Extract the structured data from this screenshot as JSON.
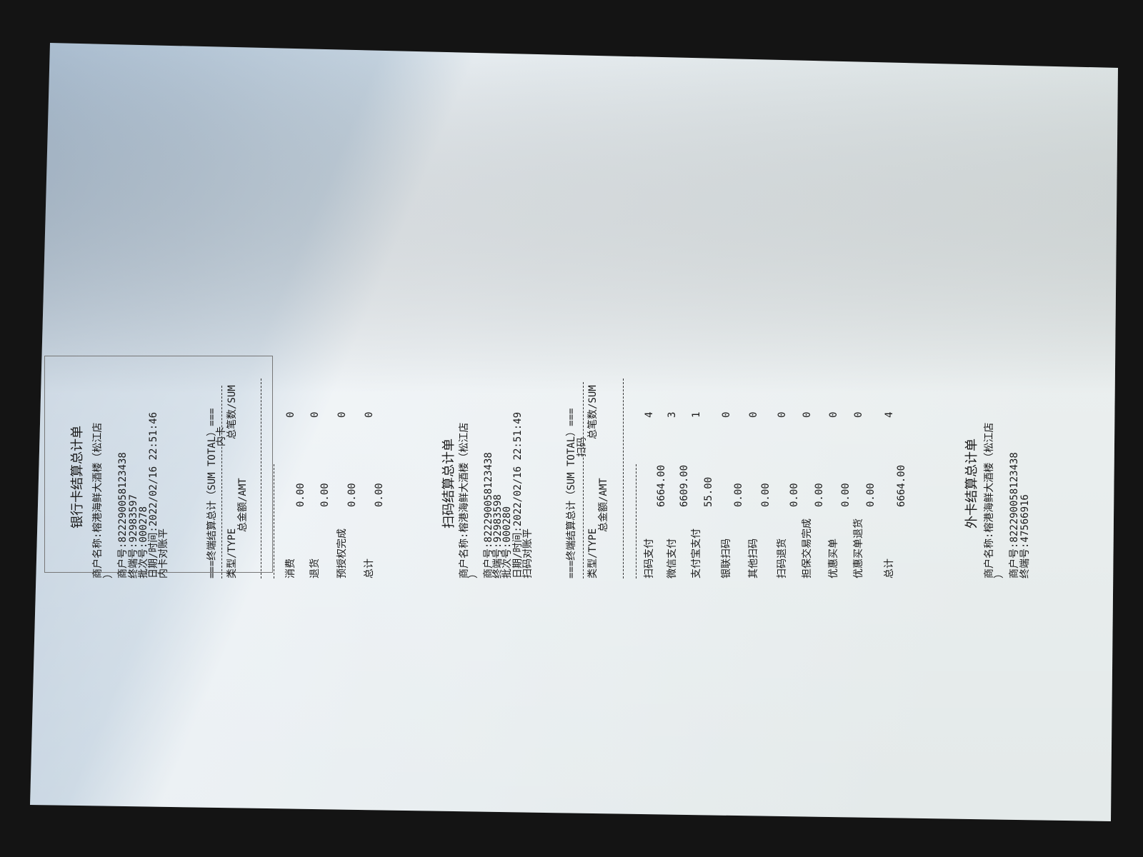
{
  "receipts": [
    {
      "title": "银行卡结算总计单",
      "merchant_name": "商户名称:榕港海鲜大酒楼（松江店",
      "merchant_name_cont": "）",
      "merchant_no": "商户号:822290058123438",
      "terminal_no": "终端号:92983597",
      "batch_no": "批次号:000278",
      "datetime": "日期/时间:2022/02/16 22:51:46",
      "status": "内卡对账平",
      "sum_header": "===终端结算总计（SUM TOTAL）===",
      "section": "内卡",
      "col_type": "类型/TYPE",
      "col_count": "总笔数/SUM",
      "col_amount": "总金额/AMT",
      "rows": [
        {
          "label": "消费",
          "count": "0",
          "amount": "0.00"
        },
        {
          "label": "退货",
          "count": "0",
          "amount": "0.00"
        },
        {
          "label": "预授权完成",
          "count": "0",
          "amount": "0.00"
        },
        {
          "label": "总计",
          "count": "0",
          "amount": "0.00"
        }
      ]
    },
    {
      "title": "扫码结算总计单",
      "merchant_name": "商户名称:榕港海鲜大酒楼（松江店",
      "merchant_name_cont": "）",
      "merchant_no": "商户号:822290058123438",
      "terminal_no": "终端号:92983598",
      "batch_no": "批次号:000280",
      "datetime": "日期/时间:2022/02/16 22:51:49",
      "status": "扫码对账平",
      "sum_header": "===终端结算总计（SUM TOTAL）===",
      "section": "扫码",
      "col_type": "类型/TYPE",
      "col_count": "总笔数/SUM",
      "col_amount": "总金额/AMT",
      "rows": [
        {
          "label": "扫码支付",
          "count": "4",
          "amount": "6664.00"
        },
        {
          "label": "微信支付",
          "count": "3",
          "amount": "6609.00"
        },
        {
          "label": "支付宝支付",
          "count": "1",
          "amount": "55.00"
        },
        {
          "label": "银联扫码",
          "count": "0",
          "amount": "0.00"
        },
        {
          "label": "其他扫码",
          "count": "0",
          "amount": "0.00"
        },
        {
          "label": "扫码退货",
          "count": "0",
          "amount": "0.00"
        },
        {
          "label": "担保交易完成",
          "count": "0",
          "amount": "0.00"
        },
        {
          "label": "优惠买单",
          "count": "0",
          "amount": "0.00"
        },
        {
          "label": "优惠买单退货",
          "count": "0",
          "amount": "0.00"
        },
        {
          "label": "总计",
          "count": "4",
          "amount": "6664.00"
        }
      ]
    },
    {
      "title": "外卡结算总计单",
      "merchant_name": "商户名称:榕港海鲜大酒楼（松江店",
      "merchant_name_cont": "）",
      "merchant_no": "商户号:822290058123438",
      "terminal_no": "终端号:47566916"
    }
  ]
}
